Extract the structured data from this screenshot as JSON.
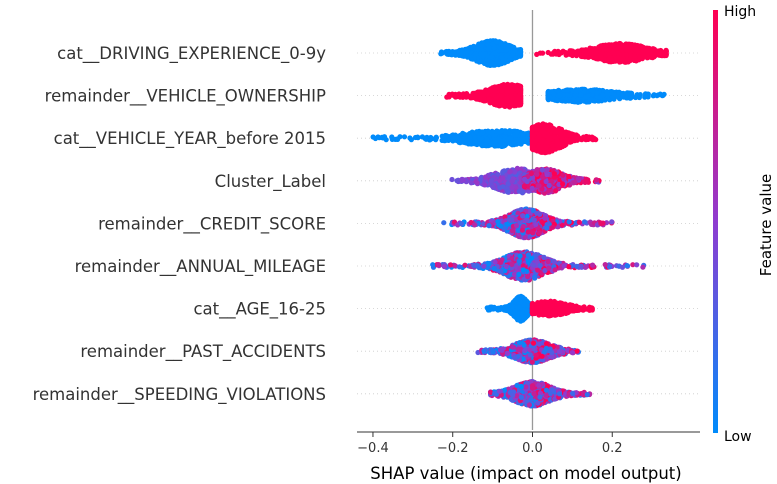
{
  "chart_data": {
    "type": "scatter",
    "subtype": "shap-beeswarm",
    "xlabel": "SHAP value (impact on model output)",
    "xlim": [
      -0.44,
      0.42
    ],
    "xticks": [
      -0.4,
      -0.2,
      0.0,
      0.2
    ],
    "xtick_labels": [
      "−0.4",
      "−0.2",
      "0.0",
      "0.2"
    ],
    "zero_line": true,
    "grid": false,
    "colorbar": {
      "title": "Feature value",
      "high_label": "High",
      "low_label": "Low",
      "low_color": "#008bfb",
      "mid_color": "#8f3cd0",
      "high_color": "#ff0052"
    },
    "features": [
      {
        "name": "cat__DRIVING_EXPERIENCE_0-9y",
        "clusters": [
          {
            "min": -0.23,
            "max": -0.03,
            "center": -0.1,
            "spread": 0.04,
            "width": 11,
            "color": 0.0,
            "count": 700
          },
          {
            "min": 0.01,
            "max": 0.335,
            "center": 0.22,
            "spread": 0.06,
            "width": 8,
            "color": 1.0,
            "count": 600
          }
        ]
      },
      {
        "name": "remainder__VEHICLE_OWNERSHIP",
        "clusters": [
          {
            "min": -0.215,
            "max": -0.03,
            "center": -0.06,
            "spread": 0.045,
            "width": 10,
            "color": 1.0,
            "count": 600
          },
          {
            "min": 0.04,
            "max": 0.33,
            "center": 0.12,
            "spread": 0.07,
            "width": 5,
            "color": 0.0,
            "count": 500
          }
        ]
      },
      {
        "name": "cat__VEHICLE_YEAR_before 2015",
        "clusters": [
          {
            "min": -0.4,
            "max": -0.01,
            "center": -0.09,
            "spread": 0.07,
            "width": 7,
            "color": 0.0,
            "count": 550
          },
          {
            "min": 0.0,
            "max": 0.16,
            "center": 0.03,
            "spread": 0.04,
            "width": 13,
            "color": 1.0,
            "count": 600
          }
        ]
      },
      {
        "name": "Cluster_Label",
        "clusters": [
          {
            "min": -0.205,
            "max": 0.0,
            "center": -0.04,
            "spread": 0.05,
            "width": 11,
            "color": 0.45,
            "color_jitter": 0.15,
            "count": 500
          },
          {
            "min": -0.02,
            "max": 0.17,
            "center": 0.03,
            "spread": 0.04,
            "width": 11,
            "color": 0.7,
            "color_jitter": 0.35,
            "count": 450
          }
        ]
      },
      {
        "name": "remainder__CREDIT_SCORE",
        "clusters": [
          {
            "min": -0.24,
            "max": 0.2,
            "center": -0.015,
            "spread": 0.04,
            "width": 13,
            "color": 0.5,
            "color_jitter": 0.5,
            "count": 900
          }
        ]
      },
      {
        "name": "remainder__ANNUAL_MILEAGE",
        "clusters": [
          {
            "min": -0.255,
            "max": 0.28,
            "center": -0.02,
            "spread": 0.045,
            "width": 13,
            "color": 0.5,
            "color_jitter": 0.5,
            "count": 900
          }
        ]
      },
      {
        "name": "cat__AGE_16-25",
        "clusters": [
          {
            "min": -0.115,
            "max": -0.005,
            "center": -0.03,
            "spread": 0.015,
            "width": 11,
            "color": 0.0,
            "count": 600
          },
          {
            "min": 0.0,
            "max": 0.15,
            "center": 0.04,
            "spread": 0.04,
            "width": 6,
            "color": 1.0,
            "count": 400
          }
        ]
      },
      {
        "name": "remainder__PAST_ACCIDENTS",
        "clusters": [
          {
            "min": -0.145,
            "max": 0.115,
            "center": 0.0,
            "spread": 0.04,
            "width": 10,
            "color": 0.5,
            "color_jitter": 0.5,
            "count": 700
          }
        ]
      },
      {
        "name": "remainder__SPEEDING_VIOLATIONS",
        "clusters": [
          {
            "min": -0.105,
            "max": 0.145,
            "center": 0.0,
            "spread": 0.04,
            "width": 11,
            "color": 0.5,
            "color_jitter": 0.5,
            "count": 750
          }
        ]
      }
    ]
  }
}
